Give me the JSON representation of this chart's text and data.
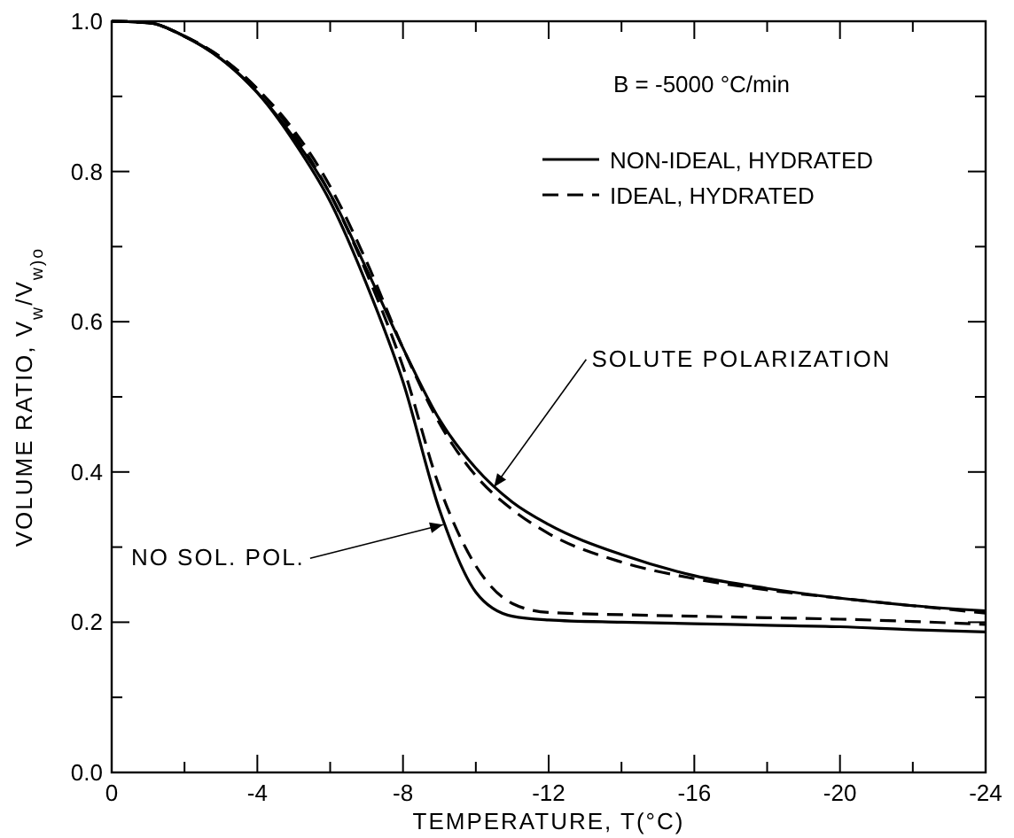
{
  "chart_data": {
    "type": "line",
    "xlabel": "TEMPERATURE, T(°C)",
    "ylabel": "VOLUME RATIO, V$_{w}$/V$_{w)o}$",
    "legend_title": "B = -5000 °C/min",
    "legend": "top right",
    "grid": false,
    "x": [
      0,
      -1,
      -2,
      -3,
      -4,
      -5,
      -6,
      -7,
      -8,
      -9,
      -10,
      -11,
      -12,
      -14,
      -16,
      -18,
      -20,
      -22,
      -24
    ],
    "series": [
      {
        "name": "NON-IDEAL, HYDRATED",
        "color": "#000000",
        "line_style": "solid",
        "values": [
          1.0,
          0.998,
          0.98,
          0.95,
          0.905,
          0.845,
          0.77,
          0.67,
          0.565,
          0.47,
          0.405,
          0.36,
          0.33,
          0.29,
          0.262,
          0.245,
          0.232,
          0.222,
          0.215
        ]
      },
      {
        "name": "IDEAL, HYDRATED",
        "color": "#000000",
        "line_style": "dashed",
        "values": [
          1.0,
          0.998,
          0.98,
          0.952,
          0.91,
          0.855,
          0.78,
          0.68,
          0.565,
          0.465,
          0.395,
          0.35,
          0.318,
          0.28,
          0.258,
          0.243,
          0.232,
          0.222,
          0.212
        ]
      },
      {
        "color": "#000000",
        "line_style": "solid",
        "values": [
          1.0,
          0.998,
          0.98,
          0.95,
          0.905,
          0.84,
          0.76,
          0.65,
          0.52,
          0.35,
          0.24,
          0.208,
          0.203,
          0.2,
          0.198,
          0.196,
          0.194,
          0.19,
          0.187
        ]
      },
      {
        "color": "#000000",
        "line_style": "dashed",
        "values": [
          1.0,
          0.998,
          0.98,
          0.952,
          0.91,
          0.85,
          0.77,
          0.665,
          0.54,
          0.38,
          0.275,
          0.225,
          0.213,
          0.21,
          0.208,
          0.206,
          0.204,
          0.201,
          0.197
        ]
      }
    ],
    "xlim": [
      0,
      -24
    ],
    "xticks": [
      0,
      {
        "value": -2,
        "label": null
      },
      -4,
      {
        "value": -6,
        "label": null
      },
      -8,
      {
        "value": -10,
        "label": null
      },
      -12,
      {
        "value": -14,
        "label": null
      },
      -16,
      {
        "value": -18,
        "label": null
      },
      -20,
      {
        "value": -22,
        "label": null
      },
      -24
    ],
    "ylim": [
      0,
      1
    ],
    "yticks": [
      {
        "value": 0,
        "label": "0.0"
      },
      {
        "value": 0.1,
        "label": null
      },
      0.2,
      {
        "value": 0.3,
        "label": null
      },
      0.4,
      {
        "value": 0.5,
        "label": null
      },
      0.6,
      {
        "value": 0.7,
        "label": null
      },
      0.8,
      {
        "value": 0.9,
        "label": null
      },
      {
        "value": 1,
        "label": "1.0"
      }
    ],
    "annotations": [
      {
        "text": "SOLUTE POLARIZATION",
        "x": -10.5,
        "y": 0.38
      },
      {
        "text": "NO SOL. POL.",
        "x": -9.1,
        "y": 0.33
      }
    ]
  }
}
